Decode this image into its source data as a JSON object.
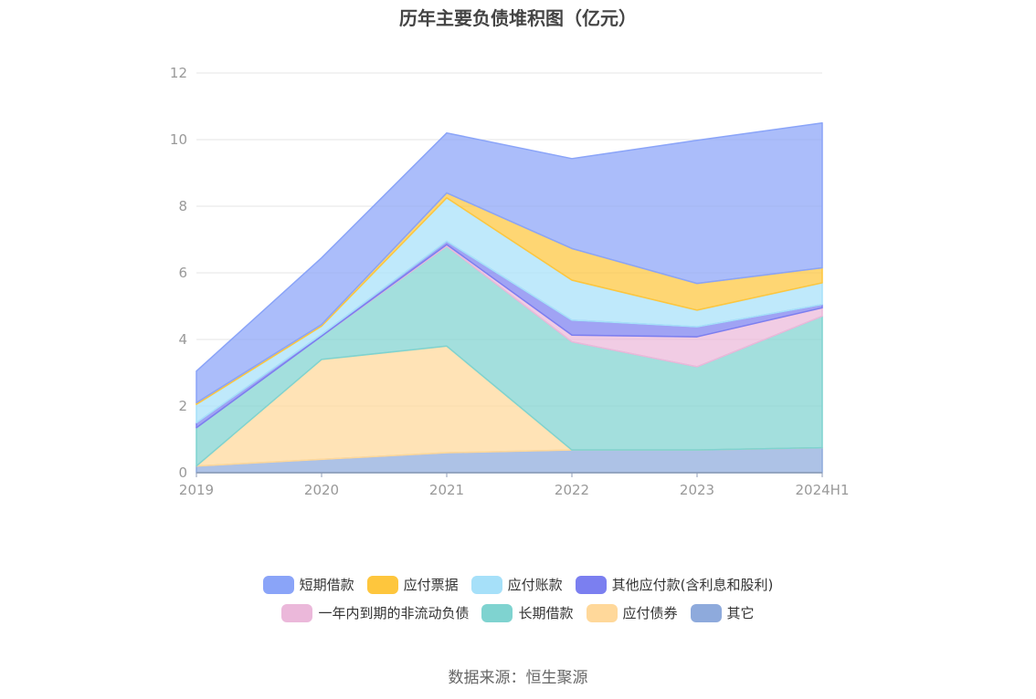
{
  "title": "历年主要负债堆积图（亿元）",
  "source": "数据来源：恒生聚源",
  "chart_data": {
    "type": "area",
    "stacked": true,
    "categories": [
      "2019",
      "2020",
      "2021",
      "2022",
      "2023",
      "2024H1"
    ],
    "ylim": [
      0,
      12
    ],
    "yticks": [
      0,
      2,
      4,
      6,
      8,
      10,
      12
    ],
    "grid": true,
    "legend_position": "bottom",
    "series": [
      {
        "name": "其它",
        "color": "#8eaadc",
        "values": [
          0.2,
          0.4,
          0.6,
          0.68,
          0.68,
          0.75
        ]
      },
      {
        "name": "应付债券",
        "color": "#ffd89a",
        "values": [
          0.0,
          3.0,
          3.2,
          0.0,
          0.0,
          0.0
        ]
      },
      {
        "name": "长期借款",
        "color": "#7fd3d0",
        "values": [
          1.15,
          0.7,
          3.0,
          3.25,
          2.5,
          3.95
        ]
      },
      {
        "name": "一年内到期的非流动负债",
        "color": "#ebb8da",
        "values": [
          0.0,
          0.0,
          0.05,
          0.2,
          0.9,
          0.25
        ]
      },
      {
        "name": "其他应付款(含利息和股利)",
        "color": "#7b7ff0",
        "values": [
          0.15,
          0.05,
          0.1,
          0.45,
          0.3,
          0.1
        ]
      },
      {
        "name": "应付账款",
        "color": "#a6e0f9",
        "values": [
          0.55,
          0.25,
          1.3,
          1.2,
          0.5,
          0.65
        ]
      },
      {
        "name": "应付票据",
        "color": "#fec63d",
        "values": [
          0.05,
          0.05,
          0.15,
          0.95,
          0.8,
          0.45
        ]
      },
      {
        "name": "短期借款",
        "color": "#8aa4f8",
        "values": [
          0.95,
          2.0,
          1.8,
          2.7,
          4.3,
          4.35
        ]
      }
    ]
  },
  "legend": {
    "row1": [
      {
        "label": "短期借款",
        "color": "#8aa4f8"
      },
      {
        "label": "应付票据",
        "color": "#fec63d"
      },
      {
        "label": "应付账款",
        "color": "#a6e0f9"
      },
      {
        "label": "其他应付款(含利息和股利)",
        "color": "#7b7ff0"
      }
    ],
    "row2": [
      {
        "label": "一年内到期的非流动负债",
        "color": "#ebb8da"
      },
      {
        "label": "长期借款",
        "color": "#7fd3d0"
      },
      {
        "label": "应付债券",
        "color": "#ffd89a"
      },
      {
        "label": "其它",
        "color": "#8eaadc"
      }
    ]
  }
}
